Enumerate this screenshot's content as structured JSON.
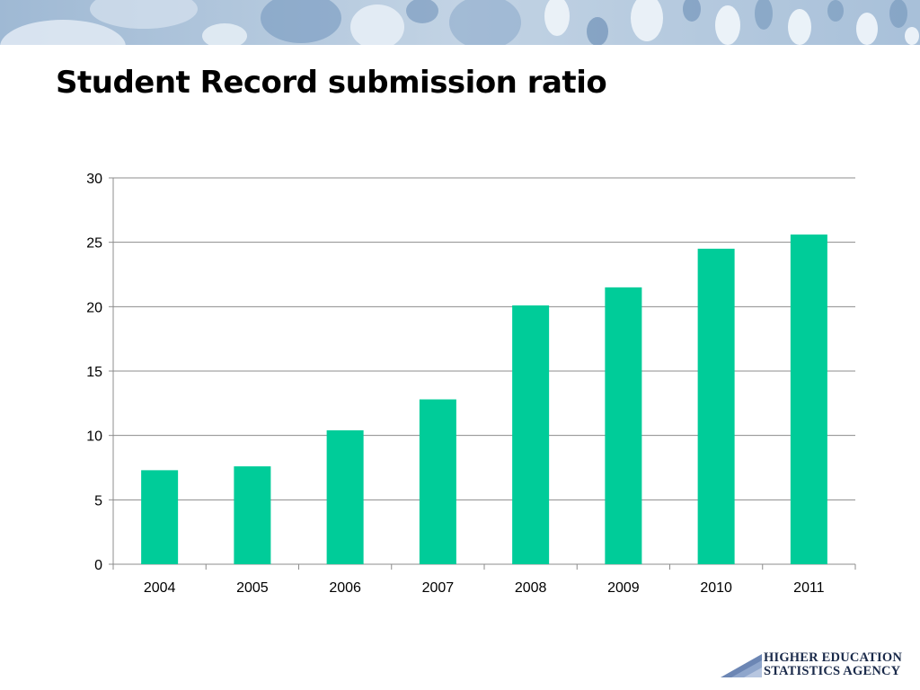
{
  "slide": {
    "title": "Student Record submission ratio"
  },
  "logo": {
    "line1": "HIGHER EDUCATION",
    "line2": "STATISTICS AGENCY"
  },
  "colors": {
    "bar": "#00CC99",
    "gridline": "#8C8C8C",
    "axis": "#8C8C8C",
    "banner_base": "#AFC6DD",
    "logo_mark": "#6C86B4"
  },
  "chart_data": {
    "type": "bar",
    "categories": [
      "2004",
      "2005",
      "2006",
      "2007",
      "2008",
      "2009",
      "2010",
      "2011"
    ],
    "values": [
      7.3,
      7.6,
      10.4,
      12.8,
      20.1,
      21.5,
      24.5,
      25.6
    ],
    "yticks": [
      0,
      5,
      10,
      15,
      20,
      25,
      30
    ],
    "ylim": [
      0,
      30
    ],
    "title": "",
    "xlabel": "",
    "ylabel": "",
    "grid": true,
    "legend": false
  }
}
